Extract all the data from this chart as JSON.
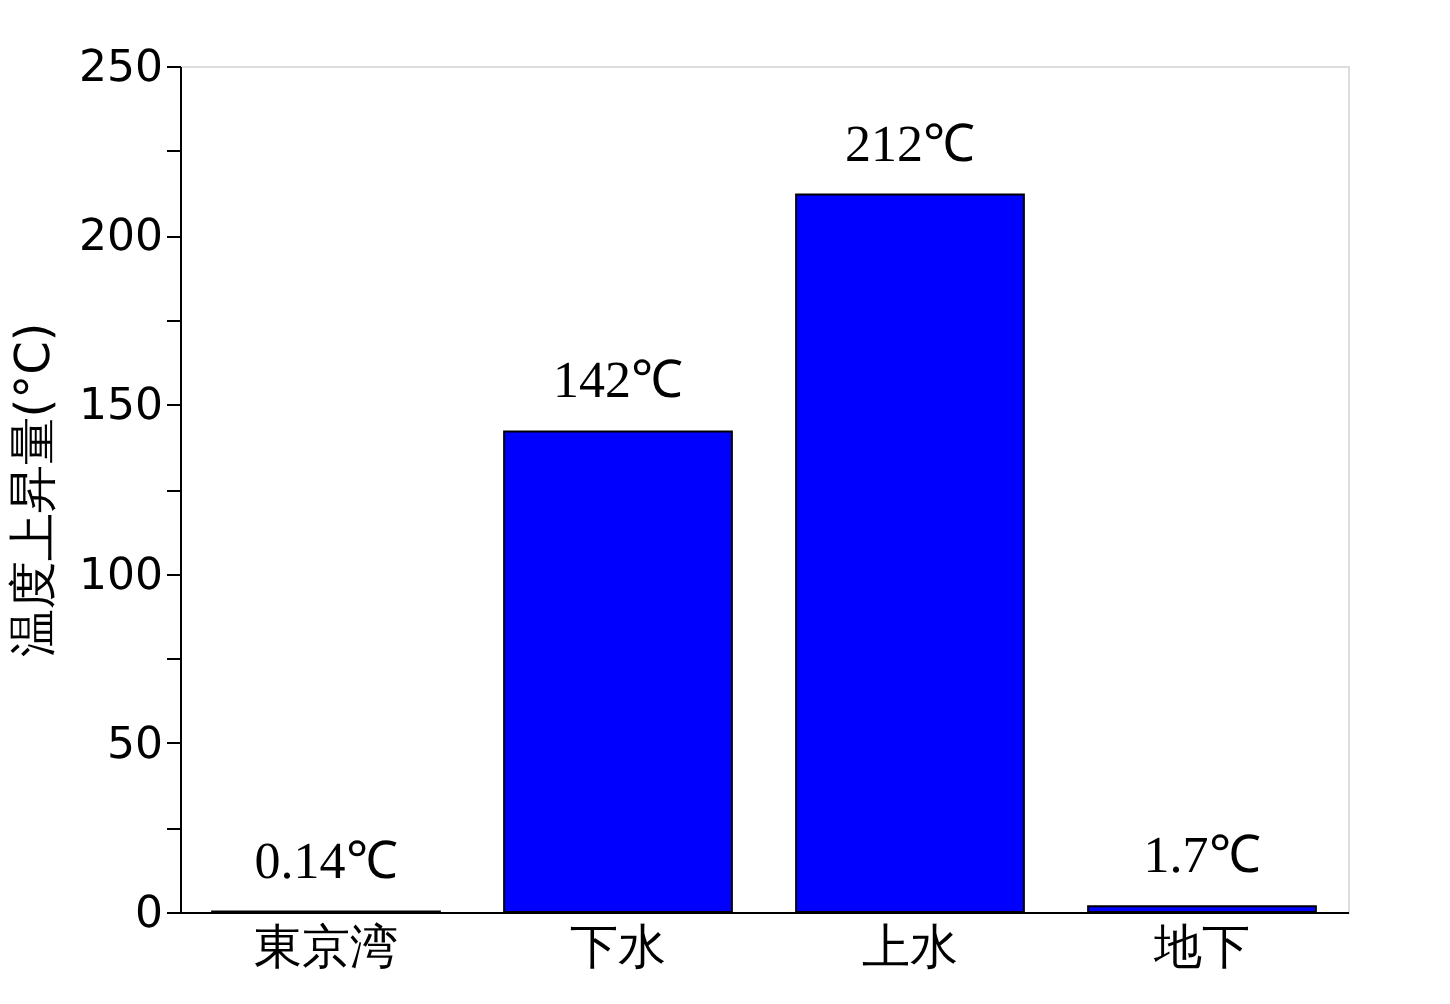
{
  "chart_data": {
    "type": "bar",
    "ylabel": "温度上昇量(°C)",
    "categories": [
      "東京湾",
      "下水",
      "上水",
      "地下"
    ],
    "values": [
      0.14,
      142,
      212,
      1.7
    ],
    "value_labels": [
      "0.14℃",
      "142℃",
      "212℃",
      "1.7℃"
    ],
    "color": "#0000ff",
    "ylim": [
      0,
      250
    ],
    "yticks": [
      0,
      {
        "value": 25,
        "label": null
      },
      50,
      {
        "value": 75,
        "label": null
      },
      100,
      {
        "value": 125,
        "label": null
      },
      150,
      {
        "value": 175,
        "label": null
      },
      200,
      {
        "value": 225,
        "label": null
      },
      250
    ],
    "grid": false
  }
}
